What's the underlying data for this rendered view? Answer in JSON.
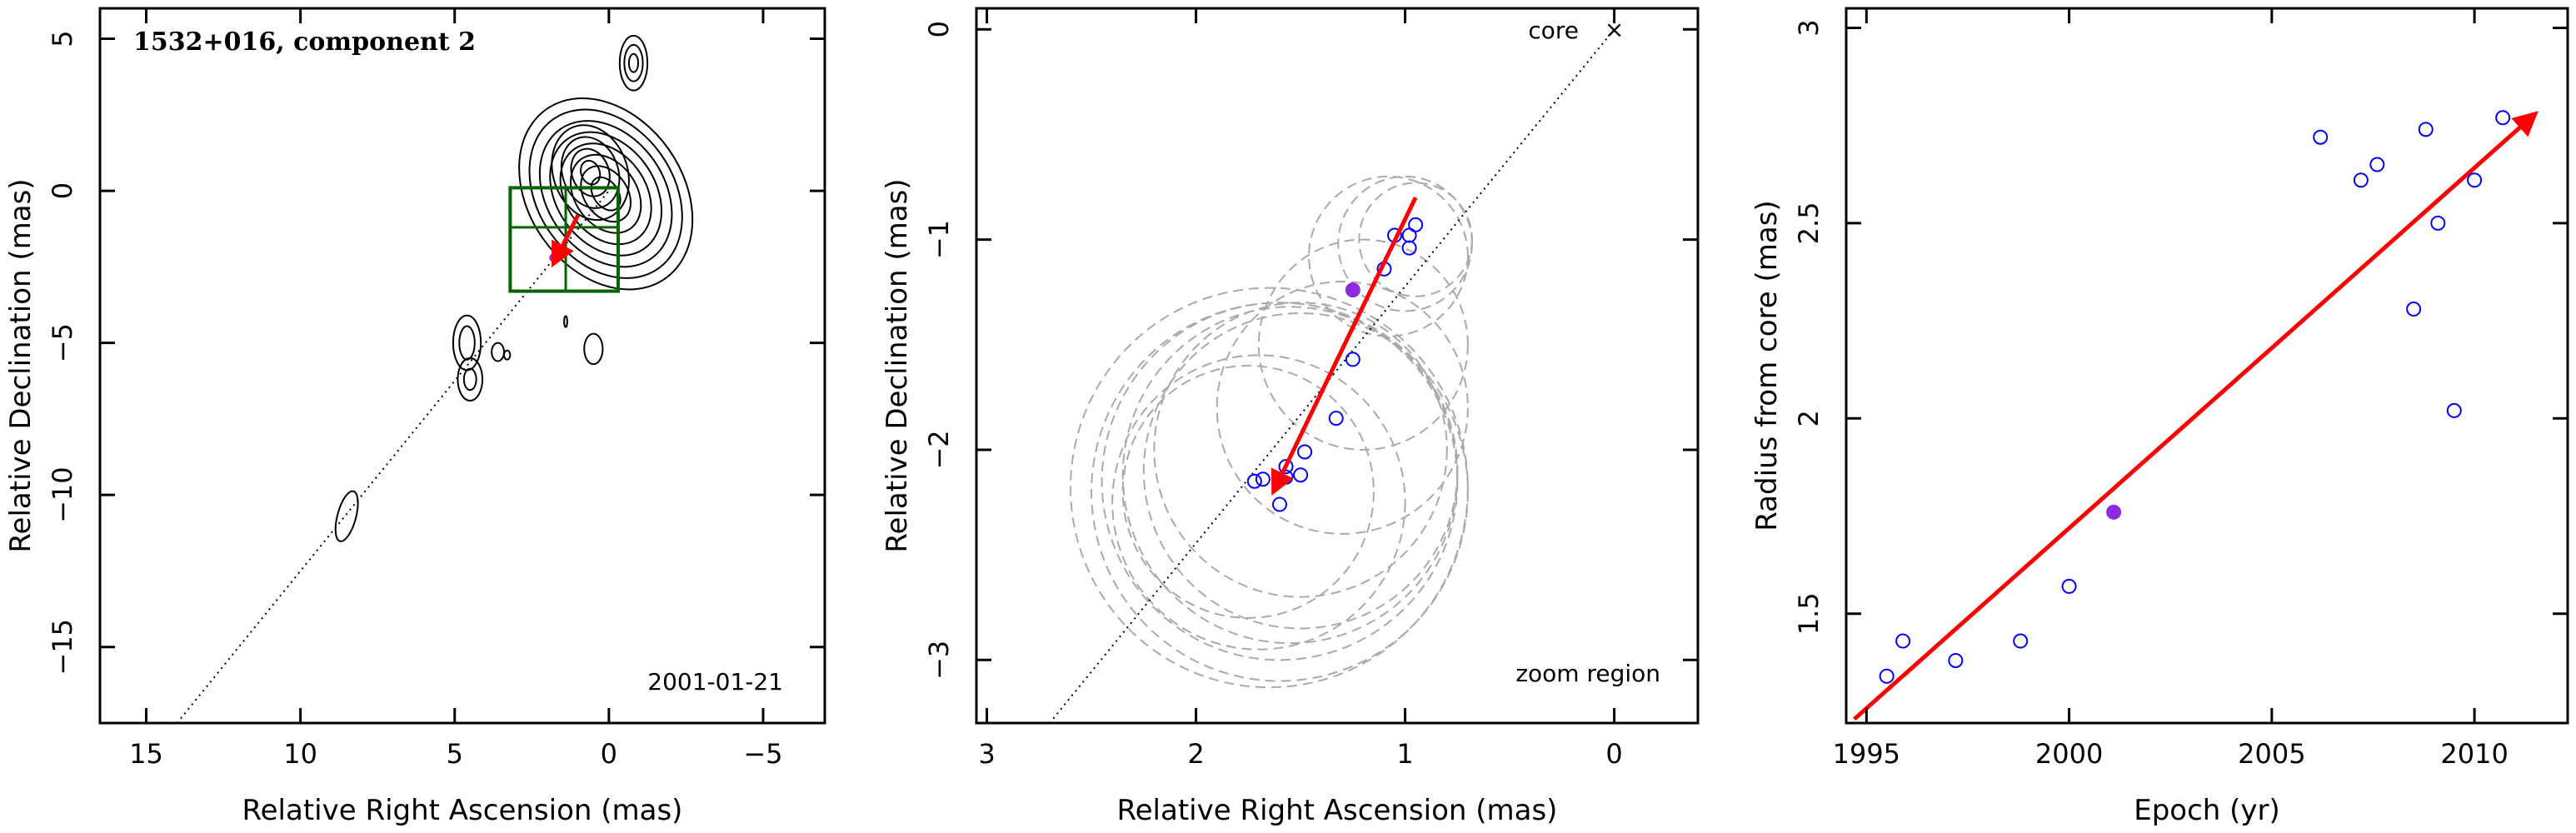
{
  "chart_data": [
    {
      "type": "contour",
      "title": "1532+016, component 2",
      "epoch_label": "2001-01-21",
      "xlabel": "Relative Right Ascension (mas)",
      "ylabel": "Relative Declination (mas)",
      "xlim": [
        16.5,
        -7
      ],
      "ylim": [
        -17.5,
        6
      ],
      "xticks": [
        15,
        10,
        5,
        0,
        -5
      ],
      "yticks": [
        5,
        0,
        -5,
        -10,
        -15
      ],
      "xtick_labels": [
        "15",
        "10",
        "5",
        "0",
        "−5"
      ],
      "ytick_labels": [
        "5",
        "0",
        "−5",
        "−10",
        "−15"
      ],
      "guide_line": {
        "x": [
          14,
          0
        ],
        "y": [
          -17.5,
          0
        ]
      },
      "zoom_box": {
        "x": [
          3.2,
          -0.3
        ],
        "y": [
          -3.3,
          0.1
        ]
      },
      "zoom_grid_lines": {
        "x": 1.4,
        "y": -1.2
      },
      "arrow": {
        "from": [
          1.0,
          -0.8
        ],
        "to": [
          1.8,
          -2.4
        ],
        "color": "#ff0000"
      },
      "marker": {
        "x": 1.8,
        "y": -2.2,
        "color": "#8b2be2"
      },
      "contour_sources": [
        {
          "x": 0.1,
          "y": -0.1,
          "rx": [
            0.4,
            0.7,
            1.0,
            1.3,
            1.6,
            1.9,
            2.2,
            2.5
          ],
          "ry": [
            0.6,
            1.0,
            1.4,
            1.8,
            2.2,
            2.6,
            3.0,
            3.4
          ],
          "angle": -35
        },
        {
          "x": 0.6,
          "y": 0.6,
          "rx": [
            0.3,
            0.6,
            0.9,
            1.2
          ],
          "ry": [
            0.4,
            0.8,
            1.2,
            1.6
          ],
          "angle": -20
        },
        {
          "x": -0.8,
          "y": 4.2,
          "rx": [
            0.15,
            0.3,
            0.45
          ],
          "ry": [
            0.3,
            0.6,
            0.9
          ],
          "angle": 0
        },
        {
          "x": 4.6,
          "y": -5.0,
          "rx": [
            0.25,
            0.45
          ],
          "ry": [
            0.55,
            0.9
          ],
          "angle": 0
        },
        {
          "x": 4.5,
          "y": -6.2,
          "rx": [
            0.2,
            0.4
          ],
          "ry": [
            0.35,
            0.7
          ],
          "angle": 0
        },
        {
          "x": 3.6,
          "y": -5.3,
          "rx": [
            0.2
          ],
          "ry": [
            0.3
          ],
          "angle": 0
        },
        {
          "x": 3.3,
          "y": -5.4,
          "rx": [
            0.1
          ],
          "ry": [
            0.15
          ],
          "angle": 0
        },
        {
          "x": 0.5,
          "y": -5.2,
          "rx": [
            0.3
          ],
          "ry": [
            0.5
          ],
          "angle": 0
        },
        {
          "x": 1.4,
          "y": -4.3,
          "rx": [
            0.05
          ],
          "ry": [
            0.18
          ],
          "angle": 0
        },
        {
          "x": 8.5,
          "y": -10.7,
          "rx": [
            0.3
          ],
          "ry": [
            0.85
          ],
          "angle": 15
        }
      ]
    },
    {
      "type": "scatter",
      "title": "",
      "corner_label": "core",
      "core_marker": "×",
      "zoom_label": "zoom region",
      "xlabel": "Relative Right Ascension (mas)",
      "ylabel": "Relative Declination (mas)",
      "xlim": [
        3.05,
        -0.4
      ],
      "ylim": [
        -3.3,
        0.1
      ],
      "xticks": [
        3,
        2,
        1,
        0
      ],
      "yticks": [
        0,
        -1,
        -2,
        -3
      ],
      "xtick_labels": [
        "3",
        "2",
        "1",
        "0"
      ],
      "ytick_labels": [
        "0",
        "−1",
        "−2",
        "−3"
      ],
      "guide_line": {
        "x": [
          2.7,
          0
        ],
        "y": [
          -3.3,
          0
        ]
      },
      "core_position": [
        0.0,
        0.0
      ],
      "arrow": {
        "from": [
          0.95,
          -0.8
        ],
        "to": [
          1.63,
          -2.2
        ],
        "color": "#ff0000"
      },
      "open_points": {
        "x": [
          0.95,
          0.98,
          0.98,
          1.05,
          1.1,
          1.25,
          1.33,
          1.48,
          1.5,
          1.57,
          1.57,
          1.6,
          1.68,
          1.72
        ],
        "y": [
          -0.93,
          -0.98,
          -1.04,
          -0.98,
          -1.14,
          -1.57,
          -1.85,
          -2.01,
          -2.12,
          -2.08,
          -2.13,
          -2.26,
          -2.14,
          -2.15
        ],
        "color": "#0000ff"
      },
      "filled_point": {
        "x": 1.25,
        "y": -1.24,
        "color": "#8b2be2"
      },
      "beam_circles": [
        {
          "x": 0.95,
          "y": -1.0,
          "r": 0.27
        },
        {
          "x": 1.0,
          "y": -1.02,
          "r": 0.32
        },
        {
          "x": 1.08,
          "y": -1.08,
          "r": 0.38
        },
        {
          "x": 1.2,
          "y": -1.5,
          "r": 0.5
        },
        {
          "x": 1.3,
          "y": -1.8,
          "r": 0.6
        },
        {
          "x": 1.5,
          "y": -2.0,
          "r": 0.7
        },
        {
          "x": 1.5,
          "y": -2.1,
          "r": 0.75
        },
        {
          "x": 1.55,
          "y": -2.12,
          "r": 0.8
        },
        {
          "x": 1.6,
          "y": -2.15,
          "r": 0.85
        },
        {
          "x": 1.6,
          "y": -2.2,
          "r": 0.9
        },
        {
          "x": 1.65,
          "y": -2.18,
          "r": 0.95
        },
        {
          "x": 1.75,
          "y": -2.2,
          "r": 0.6
        },
        {
          "x": 1.7,
          "y": -2.25,
          "r": 0.7
        }
      ]
    },
    {
      "type": "scatter",
      "title": "",
      "xlabel": "Epoch (yr)",
      "ylabel": "Radius from core (mas)",
      "xlim": [
        1994.5,
        2012.3
      ],
      "ylim": [
        1.22,
        3.05
      ],
      "xticks": [
        1995,
        2000,
        2005,
        2010
      ],
      "yticks": [
        1.5,
        2,
        2.5,
        3
      ],
      "xtick_labels": [
        "1995",
        "2000",
        "2005",
        "2010"
      ],
      "ytick_labels": [
        "1.5",
        "2",
        "2.5",
        "3"
      ],
      "arrow": {
        "from": [
          1994.7,
          1.23
        ],
        "to": [
          2011.5,
          2.78
        ],
        "color": "#ff0000"
      },
      "open_points": {
        "x": [
          1995.5,
          1995.9,
          1997.2,
          1998.8,
          2000.0,
          2006.2,
          2007.2,
          2007.6,
          2008.5,
          2008.8,
          2009.1,
          2009.5,
          2010.0,
          2010.7
        ],
        "y": [
          1.34,
          1.43,
          1.38,
          1.43,
          1.57,
          2.72,
          2.61,
          2.65,
          2.28,
          2.74,
          2.5,
          2.02,
          2.61,
          2.77
        ],
        "color": "#0000ff"
      },
      "filled_point": {
        "x": 2001.1,
        "y": 1.76,
        "color": "#8b2be2"
      }
    }
  ]
}
